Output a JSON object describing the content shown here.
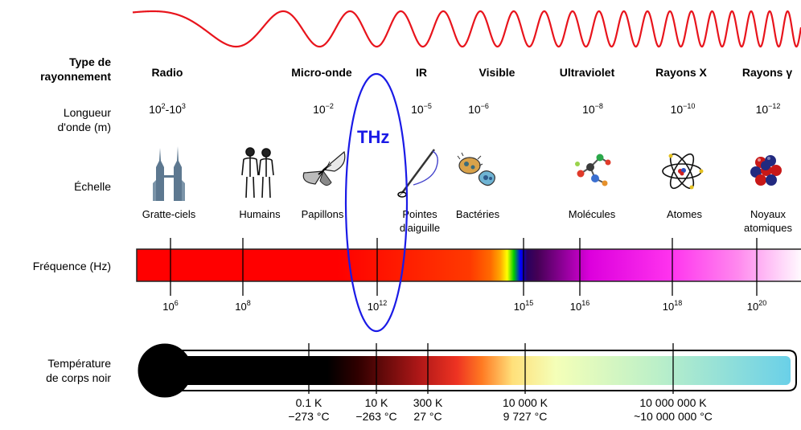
{
  "row_labels": {
    "type": "Type de rayonnement",
    "wavelength": "Longueur d'onde (m)",
    "scale": "Échelle",
    "frequency": "Fréquence (Hz)",
    "temperature": "Température de corps noir"
  },
  "categories": [
    {
      "name": "Radio",
      "wavelength_base": "10",
      "wavelength_exp": "2",
      "wavelength_sep": "-",
      "wavelength_base2": "10",
      "wavelength_exp2": "3"
    },
    {
      "name": "Micro-onde",
      "wavelength_base": "10",
      "wavelength_exp": "−2"
    },
    {
      "name": "IR",
      "wavelength_base": "10",
      "wavelength_exp": "−5"
    },
    {
      "name": "Visible",
      "wavelength_base": "10",
      "wavelength_exp": "−6"
    },
    {
      "name": "Ultraviolet",
      "wavelength_base": "10",
      "wavelength_exp": "−8"
    },
    {
      "name": "Rayons X",
      "wavelength_base": "10",
      "wavelength_exp": "−10"
    },
    {
      "name": "Rayons γ",
      "wavelength_base": "10",
      "wavelength_exp": "−12"
    }
  ],
  "scale_items": [
    {
      "label": "Gratte-ciels",
      "icon": "skyscraper-icon"
    },
    {
      "label": "Humains",
      "icon": "humans-icon"
    },
    {
      "label": "Papillons",
      "icon": "butterfly-icon"
    },
    {
      "label": "Pointes d'aiguille",
      "icon": "needle-icon"
    },
    {
      "label": "Bactéries",
      "icon": "bacteria-icon"
    },
    {
      "label": "Molécules",
      "icon": "molecule-icon"
    },
    {
      "label": "Atomes",
      "icon": "atom-icon"
    },
    {
      "label": "Noyaux atomiques",
      "icon": "nucleus-icon"
    }
  ],
  "frequency_ticks": [
    {
      "base": "10",
      "exp": "6"
    },
    {
      "base": "10",
      "exp": "8"
    },
    {
      "base": "10",
      "exp": "12"
    },
    {
      "base": "10",
      "exp": "15"
    },
    {
      "base": "10",
      "exp": "16"
    },
    {
      "base": "10",
      "exp": "18"
    },
    {
      "base": "10",
      "exp": "20"
    }
  ],
  "temperature_ticks": [
    {
      "kelvin": "0.1 K",
      "celsius": "−273 °C"
    },
    {
      "kelvin": "10 K",
      "celsius": "−263 °C"
    },
    {
      "kelvin": "300 K",
      "celsius": "27 °C"
    },
    {
      "kelvin": "10 000 K",
      "celsius": "9 727 °C"
    },
    {
      "kelvin": "10 000 000 K",
      "celsius": "~10 000 000 °C"
    }
  ],
  "highlight": {
    "label": "THz",
    "color": "#1a1ae6"
  },
  "colors": {
    "wave": "#e8141c",
    "tick": "#000000"
  }
}
